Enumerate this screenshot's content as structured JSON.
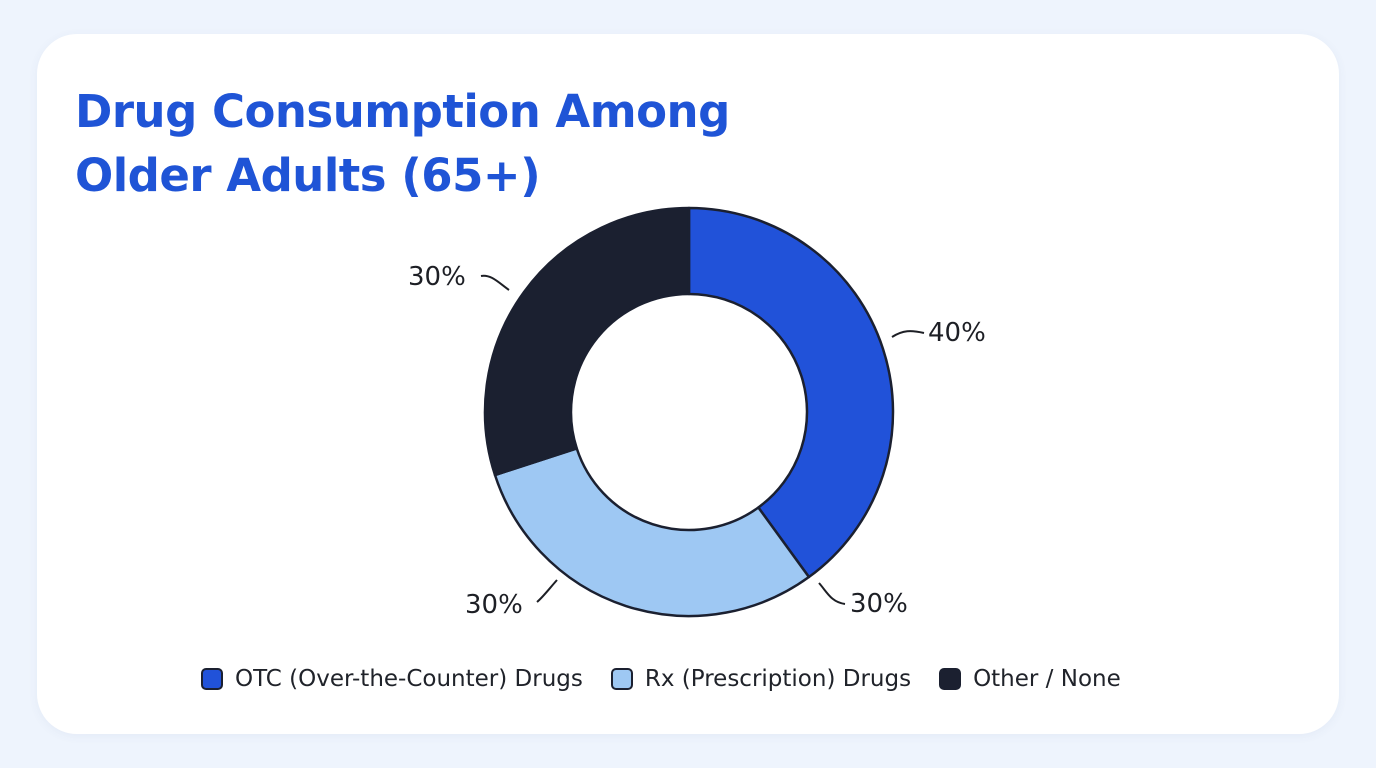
{
  "chart_data": {
    "type": "pie",
    "title_lines": [
      "Drug Consumption Among",
      "Older Adults (65+)"
    ],
    "categories": [
      "OTC (Over-the-Counter) Drugs",
      "Rx (Prescription) Drugs",
      "Other / None"
    ],
    "values": [
      40,
      30,
      30
    ],
    "slice_labels": [
      "40%",
      "30%",
      "30%"
    ],
    "extra_labels": [
      "30%"
    ],
    "colors": [
      "#2152d9",
      "#9ec8f3",
      "#1b2030"
    ],
    "donut": true,
    "legend_position": "bottom"
  }
}
